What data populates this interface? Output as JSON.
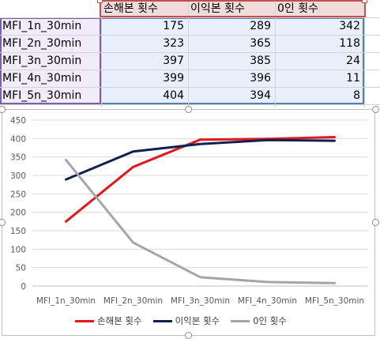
{
  "table": {
    "headers": [
      "손해본 횟수",
      "이익본 횟수",
      "0인 횟수"
    ],
    "rows": [
      {
        "label": "MFI_1n_30min",
        "v": [
          "175",
          "289",
          "342"
        ]
      },
      {
        "label": "MFI_2n_30min",
        "v": [
          "323",
          "365",
          "118"
        ]
      },
      {
        "label": "MFI_3n_30min",
        "v": [
          "397",
          "385",
          "24"
        ]
      },
      {
        "label": "MFI_4n_30min",
        "v": [
          "399",
          "396",
          "11"
        ]
      },
      {
        "label": "MFI_5n_30min",
        "v": [
          "404",
          "394",
          "8"
        ]
      }
    ]
  },
  "chart_data": {
    "type": "line",
    "categories": [
      "MFI_1n_30min",
      "MFI_2n_30min",
      "MFI_3n_30min",
      "MFI_4n_30min",
      "MFI_5n_30min"
    ],
    "series": [
      {
        "name": "손해본 횟수",
        "values": [
          175,
          323,
          397,
          399,
          404
        ],
        "color": "#e0191e"
      },
      {
        "name": "이익본 횟수",
        "values": [
          289,
          365,
          385,
          396,
          394
        ],
        "color": "#0e2150"
      },
      {
        "name": "0인 횟수",
        "values": [
          342,
          118,
          24,
          11,
          8
        ],
        "color": "#a5a5a5"
      }
    ],
    "y_ticks": [
      "0",
      "50",
      "100",
      "150",
      "200",
      "250",
      "300",
      "350",
      "400",
      "450"
    ],
    "ylim": [
      0,
      450
    ],
    "legend_position": "bottom",
    "grid": true,
    "title": "",
    "xlabel": "",
    "ylabel": ""
  }
}
